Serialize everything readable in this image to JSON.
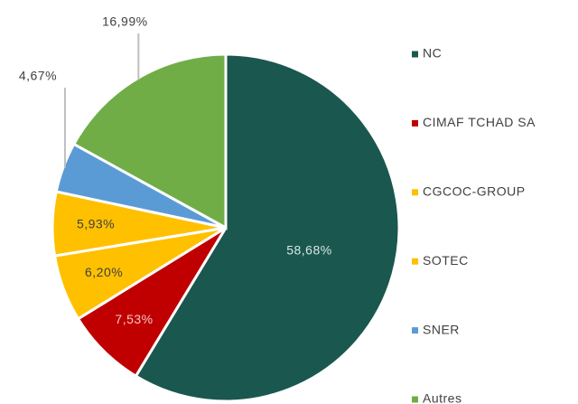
{
  "chart_data": {
    "type": "pie",
    "categories": [
      "NC",
      "CIMAF TCHAD SA",
      "CGCOC-GROUP",
      "SOTEC",
      "SNER",
      "Autres"
    ],
    "values": [
      58.68,
      7.53,
      6.2,
      5.93,
      4.67,
      16.99
    ],
    "value_labels": [
      "58,68%",
      "7,53%",
      "6,20%",
      "5,93%",
      "4,67%",
      "16,99%"
    ],
    "colors": [
      "#1a574f",
      "#c00000",
      "#ffc000",
      "#ffc000",
      "#5b9bd5",
      "#70ad47"
    ],
    "legend": "right"
  }
}
